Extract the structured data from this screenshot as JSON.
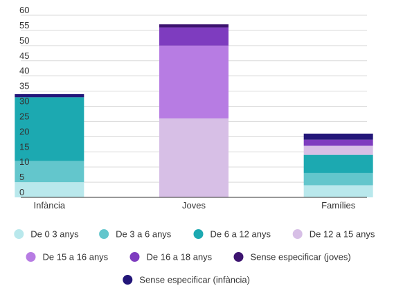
{
  "chart_data": {
    "type": "bar",
    "stacked": true,
    "categories": [
      "Infància",
      "Joves",
      "Famílies"
    ],
    "ylim": [
      0,
      60
    ],
    "yticks": [
      0,
      5,
      10,
      15,
      20,
      25,
      30,
      35,
      40,
      45,
      50,
      55,
      60
    ],
    "grid": true,
    "legend_position": "bottom",
    "series": [
      {
        "name": "De 0 3 anys",
        "color": "#b9e8ec",
        "values": [
          5,
          0,
          4
        ]
      },
      {
        "name": "De 3 a 6 anys",
        "color": "#63c6cc",
        "values": [
          7,
          0,
          4
        ]
      },
      {
        "name": "De 6 a 12 anys",
        "color": "#1ca9b1",
        "values": [
          21,
          0,
          6
        ]
      },
      {
        "name": "De 12 a 15 anys",
        "color": "#d7bfe6",
        "values": [
          0,
          26,
          3
        ]
      },
      {
        "name": "De 15 a 16 anys",
        "color": "#b77ce3",
        "values": [
          0,
          24,
          0
        ]
      },
      {
        "name": "De 16 a 18 anys",
        "color": "#7e3cbf",
        "values": [
          0,
          6,
          2
        ]
      },
      {
        "name": "Sense especificar (joves)",
        "color": "#3d1470",
        "values": [
          0,
          1,
          0
        ]
      },
      {
        "name": "Sense especificar (infància)",
        "color": "#231679",
        "values": [
          1,
          0,
          2
        ]
      }
    ]
  }
}
